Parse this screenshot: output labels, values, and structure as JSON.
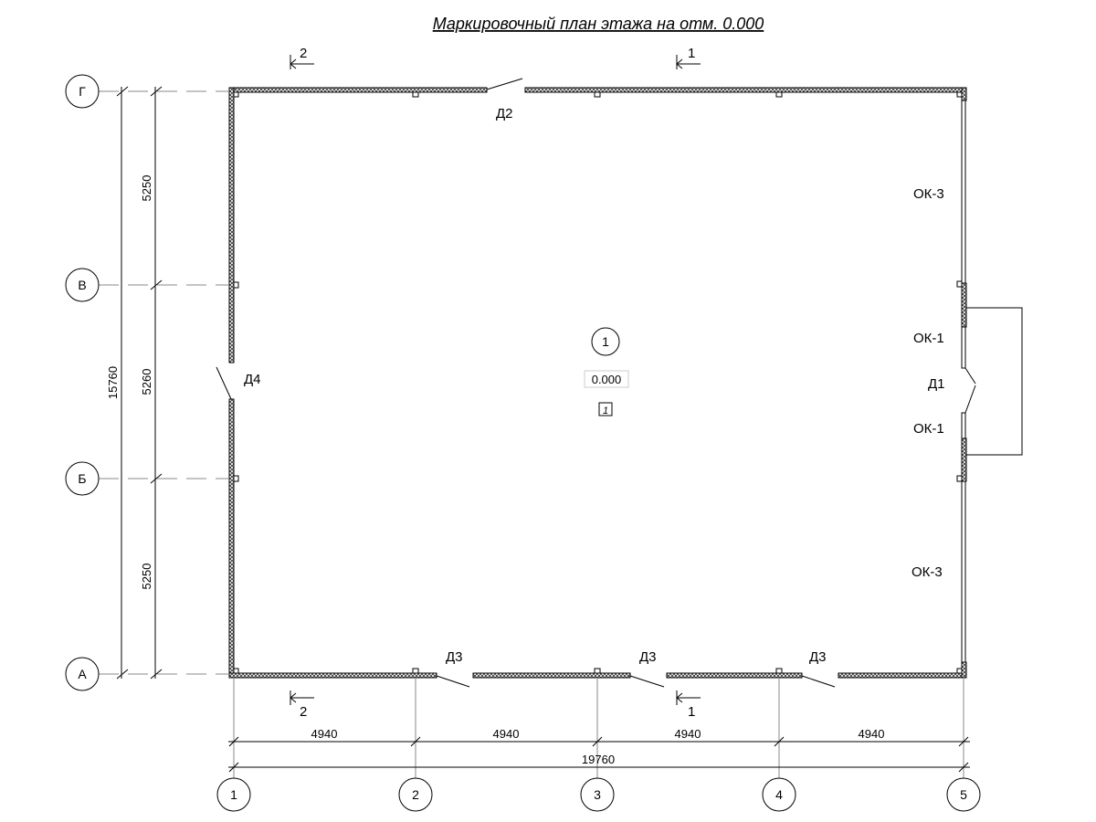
{
  "title": "Маркировочный план этажа на отм. 0.000",
  "axes_rows": [
    "Г",
    "В",
    "Б",
    "А"
  ],
  "axes_cols": [
    "1",
    "2",
    "3",
    "4",
    "5"
  ],
  "dims_vertical": [
    "5250",
    "5260",
    "5250"
  ],
  "dim_vertical_total": "15760",
  "dims_horizontal": [
    "4940",
    "4940",
    "4940",
    "4940"
  ],
  "dim_horizontal_total": "19760",
  "sections": {
    "s1": "1",
    "s2": "2"
  },
  "doors": {
    "d1": "Д1",
    "d2": "Д2",
    "d3": "Д3",
    "d4": "Д4"
  },
  "windows": {
    "ok1": "ОК-1",
    "ok3": "ОК-3"
  },
  "room": {
    "number": "1",
    "level": "0.000",
    "tag": "1"
  }
}
